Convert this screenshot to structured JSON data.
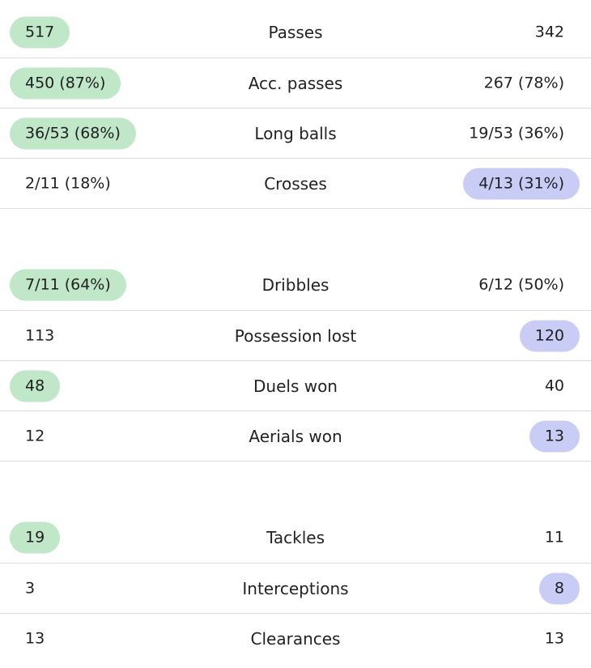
{
  "colors": {
    "home_highlight": "#bfe7c8",
    "away_highlight": "#c9ccf4",
    "divider": "#dcdcdc"
  },
  "groups": [
    {
      "rows": [
        {
          "label": "Passes",
          "home": "517",
          "away": "342",
          "highlight": "home"
        },
        {
          "label": "Acc. passes",
          "home": "450 (87%)",
          "away": "267 (78%)",
          "highlight": "home"
        },
        {
          "label": "Long balls",
          "home": "36/53 (68%)",
          "away": "19/53 (36%)",
          "highlight": "home"
        },
        {
          "label": "Crosses",
          "home": "2/11 (18%)",
          "away": "4/13 (31%)",
          "highlight": "away"
        }
      ]
    },
    {
      "rows": [
        {
          "label": "Dribbles",
          "home": "7/11 (64%)",
          "away": "6/12 (50%)",
          "highlight": "home"
        },
        {
          "label": "Possession lost",
          "home": "113",
          "away": "120",
          "highlight": "away"
        },
        {
          "label": "Duels won",
          "home": "48",
          "away": "40",
          "highlight": "home"
        },
        {
          "label": "Aerials won",
          "home": "12",
          "away": "13",
          "highlight": "away"
        }
      ]
    },
    {
      "rows": [
        {
          "label": "Tackles",
          "home": "19",
          "away": "11",
          "highlight": "home"
        },
        {
          "label": "Interceptions",
          "home": "3",
          "away": "8",
          "highlight": "away"
        },
        {
          "label": "Clearances",
          "home": "13",
          "away": "13",
          "highlight": "none"
        }
      ]
    }
  ]
}
